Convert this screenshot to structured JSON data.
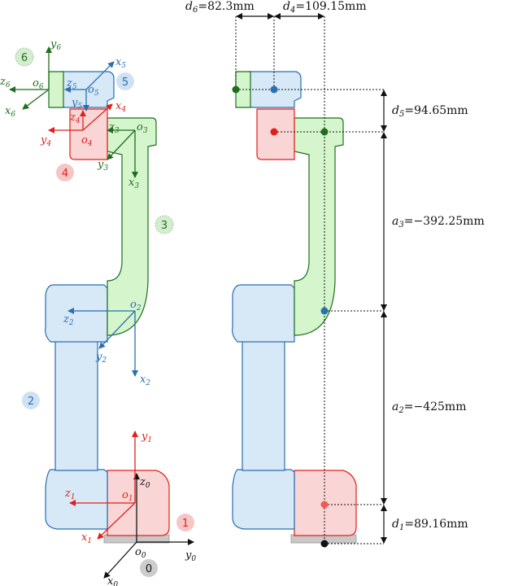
{
  "colors": {
    "red": "#e0201b",
    "green": "#1f6e1f",
    "blue": "#2a6fb0",
    "black": "#111111",
    "red_fill": "#f9d5d5",
    "green_fill": "#d5f5cc",
    "blue_fill": "#d7e8f7",
    "gray": "#c8c8c8"
  },
  "badges": {
    "b0": "0",
    "b1": "1",
    "b2": "2",
    "b3": "3",
    "b4": "4",
    "b5": "5",
    "b6": "6"
  },
  "frames": {
    "f0": {
      "x": "x",
      "y": "y",
      "z": "z",
      "o": "o",
      "sub": "0"
    },
    "f1": {
      "x": "x",
      "y": "y",
      "z": "z",
      "o": "o",
      "sub": "1"
    },
    "f2": {
      "x": "x",
      "y": "y",
      "z": "z",
      "o": "o",
      "sub": "2"
    },
    "f3": {
      "x": "x",
      "y": "y",
      "z": "z",
      "o": "o",
      "sub": "3"
    },
    "f4": {
      "x": "x",
      "y": "y",
      "z": "z",
      "o": "o",
      "sub": "4"
    },
    "f5": {
      "x": "x",
      "y": "y",
      "z": "z",
      "o": "o",
      "sub": "5"
    },
    "f6": {
      "x": "x",
      "y": "y",
      "z": "z",
      "o": "o",
      "sub": "6"
    }
  },
  "dimensions": {
    "d6": {
      "sym": "d",
      "sub": "6",
      "eq": "=82.3mm"
    },
    "d4": {
      "sym": "d",
      "sub": "4",
      "eq": "=109.15mm"
    },
    "d5": {
      "sym": "d",
      "sub": "5",
      "eq": "=94.65mm"
    },
    "a3": {
      "sym": "a",
      "sub": "3",
      "eq": "=−392.25mm"
    },
    "a2": {
      "sym": "a",
      "sub": "2",
      "eq": "=−425mm"
    },
    "d1": {
      "sym": "d",
      "sub": "1",
      "eq": "=89.16mm"
    }
  }
}
